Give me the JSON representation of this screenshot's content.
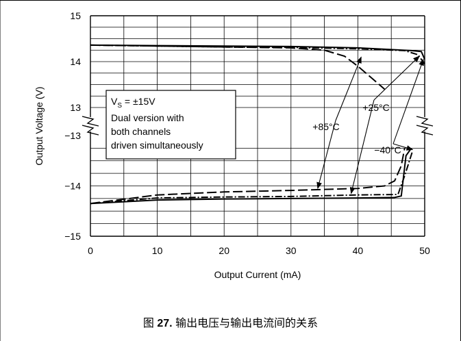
{
  "caption": {
    "prefix": "图",
    "number": "27.",
    "text": "输出电压与输出电流间的关系"
  },
  "chart_data": {
    "type": "line",
    "xlabel": "Output Current (mA)",
    "ylabel": "Output Voltage (V)",
    "xlim": [
      0,
      50
    ],
    "x_ticks": [
      "0",
      "10",
      "20",
      "30",
      "40",
      "50"
    ],
    "y_ticks_upper": [
      "15",
      "14",
      "13"
    ],
    "y_ticks_lower": [
      "−13",
      "−14",
      "−15"
    ],
    "axis_break": true,
    "grid": true,
    "note_lines": [
      "V",
      "S",
      " = ±15V",
      "Dual version with",
      "both channels",
      "driven simultaneously"
    ],
    "series": [
      {
        "name": "+85°C",
        "style": "long-dash",
        "high": [
          [
            0,
            14.36
          ],
          [
            10,
            14.34
          ],
          [
            20,
            14.32
          ],
          [
            30,
            14.3
          ],
          [
            35,
            14.25
          ],
          [
            38,
            14.12
          ],
          [
            40,
            13.9
          ],
          [
            42,
            13.65
          ],
          [
            44,
            13.4
          ]
        ],
        "low": [
          [
            0,
            -14.35
          ],
          [
            10,
            -14.18
          ],
          [
            20,
            -14.12
          ],
          [
            30,
            -14.09
          ],
          [
            40,
            -14.05
          ],
          [
            44,
            -14.0
          ],
          [
            45.5,
            -13.9
          ],
          [
            46.5,
            -13.6
          ],
          [
            47,
            -13.25
          ]
        ]
      },
      {
        "name": "+25°C",
        "style": "dash-dot",
        "high": [
          [
            0,
            14.36
          ],
          [
            10,
            14.34
          ],
          [
            20,
            14.32
          ],
          [
            30,
            14.31
          ],
          [
            40,
            14.28
          ],
          [
            47,
            14.24
          ],
          [
            49,
            14.15
          ],
          [
            50,
            13.95
          ]
        ],
        "low": [
          [
            0,
            -14.35
          ],
          [
            10,
            -14.24
          ],
          [
            20,
            -14.22
          ],
          [
            30,
            -14.21
          ],
          [
            40,
            -14.18
          ],
          [
            46,
            -14.17
          ],
          [
            47,
            -13.8
          ],
          [
            48.2,
            -13.3
          ]
        ]
      },
      {
        "name": "−40°C",
        "style": "solid",
        "high": [
          [
            0,
            14.36
          ],
          [
            10,
            14.35
          ],
          [
            20,
            14.34
          ],
          [
            30,
            14.33
          ],
          [
            40,
            14.3
          ],
          [
            48,
            14.24
          ],
          [
            49.5,
            14.22
          ],
          [
            50,
            14.05
          ]
        ],
        "low": [
          [
            0,
            -14.35
          ],
          [
            10,
            -14.28
          ],
          [
            20,
            -14.26
          ],
          [
            30,
            -14.25
          ],
          [
            40,
            -14.24
          ],
          [
            45.5,
            -14.23
          ],
          [
            46.5,
            -14.2
          ],
          [
            47.2,
            -13.4
          ],
          [
            48,
            -13.25
          ]
        ]
      }
    ],
    "labels": [
      {
        "text": "+85°C",
        "series": "+85°C"
      },
      {
        "text": "+25°C",
        "series": "+25°C"
      },
      {
        "text": "−40°C",
        "series": "−40°C"
      }
    ],
    "arrows": [
      {
        "series": "+85°C",
        "to": [
          40.5,
          14.1
        ]
      },
      {
        "series": "+85°C",
        "to": [
          34,
          -14.05
        ]
      },
      {
        "series": "+25°C",
        "to": [
          49.2,
          14.12
        ]
      },
      {
        "series": "+25°C",
        "to": [
          39,
          -14.15
        ]
      },
      {
        "series": "−40°C",
        "to": [
          49.8,
          14.05
        ]
      },
      {
        "series": "−40°C",
        "to": [
          48.2,
          -13.28
        ]
      }
    ]
  }
}
